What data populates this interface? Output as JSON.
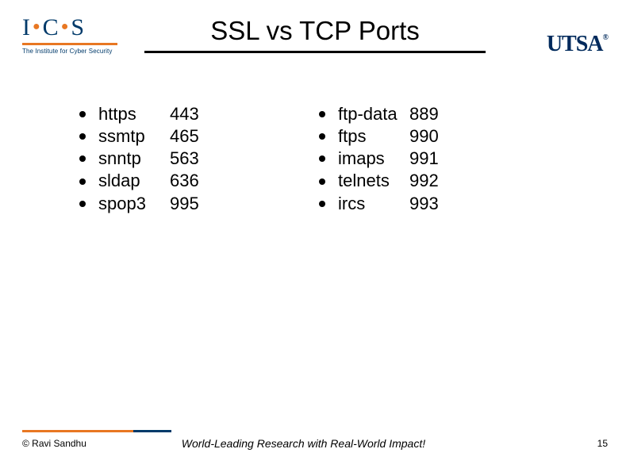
{
  "logos": {
    "ics_letters": [
      "I",
      "C",
      "S"
    ],
    "ics_subtitle": "The Institute for Cyber Security",
    "utsa": "UTSA"
  },
  "title": "SSL vs TCP Ports",
  "left_column": [
    {
      "protocol": "https",
      "port": "443"
    },
    {
      "protocol": "ssmtp",
      "port": "465"
    },
    {
      "protocol": "snntp",
      "port": "563"
    },
    {
      "protocol": "sldap",
      "port": "636"
    },
    {
      "protocol": "spop3",
      "port": "995"
    }
  ],
  "right_column": [
    {
      "protocol": "ftp-data",
      "port": "889"
    },
    {
      "protocol": "ftps",
      "port": "990"
    },
    {
      "protocol": "imaps",
      "port": "991"
    },
    {
      "protocol": "telnets",
      "port": "992"
    },
    {
      "protocol": "ircs",
      "port": "993"
    }
  ],
  "footer": {
    "copyright": "© Ravi  Sandhu",
    "tagline": "World-Leading Research with Real-World Impact!",
    "page": "15"
  },
  "colors": {
    "brand_blue": "#003a6a",
    "brand_orange": "#e87722",
    "utsa_blue": "#002a5c"
  }
}
